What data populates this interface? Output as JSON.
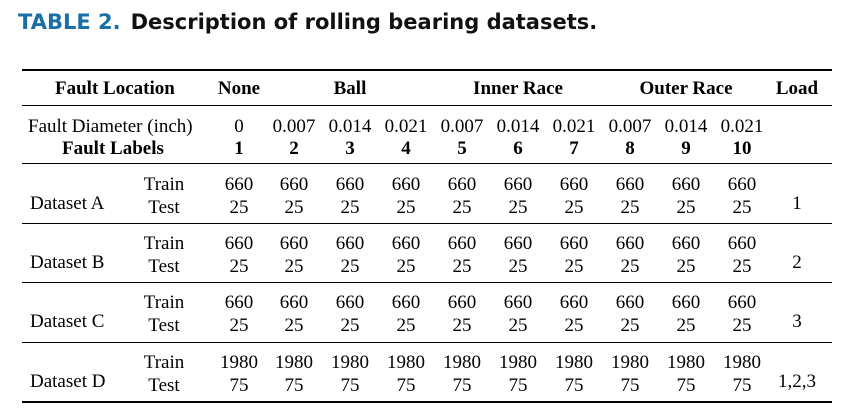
{
  "caption": {
    "label": "TABLE 2.",
    "title": "Description of rolling bearing datasets."
  },
  "header": {
    "fault_location": "Fault Location",
    "groups": [
      "None",
      "Ball",
      "Inner Race",
      "Outer Race"
    ],
    "load": "Load"
  },
  "diameter": {
    "label": "Fault Diameter (inch)",
    "values": [
      "0",
      "0.007",
      "0.014",
      "0.021",
      "0.007",
      "0.014",
      "0.021",
      "0.007",
      "0.014",
      "0.021"
    ]
  },
  "labels": {
    "label": "Fault Labels",
    "values": [
      "1",
      "2",
      "3",
      "4",
      "5",
      "6",
      "7",
      "8",
      "9",
      "10"
    ]
  },
  "datasets": [
    {
      "name": "Dataset A",
      "train_label": "Train",
      "test_label": "Test",
      "train": [
        "660",
        "660",
        "660",
        "660",
        "660",
        "660",
        "660",
        "660",
        "660",
        "660"
      ],
      "test": [
        "25",
        "25",
        "25",
        "25",
        "25",
        "25",
        "25",
        "25",
        "25",
        "25"
      ],
      "load": "1"
    },
    {
      "name": "Dataset B",
      "train_label": "Train",
      "test_label": "Test",
      "train": [
        "660",
        "660",
        "660",
        "660",
        "660",
        "660",
        "660",
        "660",
        "660",
        "660"
      ],
      "test": [
        "25",
        "25",
        "25",
        "25",
        "25",
        "25",
        "25",
        "25",
        "25",
        "25"
      ],
      "load": "2"
    },
    {
      "name": "Dataset C",
      "train_label": "Train",
      "test_label": "Test",
      "train": [
        "660",
        "660",
        "660",
        "660",
        "660",
        "660",
        "660",
        "660",
        "660",
        "660"
      ],
      "test": [
        "25",
        "25",
        "25",
        "25",
        "25",
        "25",
        "25",
        "25",
        "25",
        "25"
      ],
      "load": "3"
    },
    {
      "name": "Dataset D",
      "train_label": "Train",
      "test_label": "Test",
      "train": [
        "1980",
        "1980",
        "1980",
        "1980",
        "1980",
        "1980",
        "1980",
        "1980",
        "1980",
        "1980"
      ],
      "test": [
        "75",
        "75",
        "75",
        "75",
        "75",
        "75",
        "75",
        "75",
        "75",
        "75"
      ],
      "load": "1,2,3"
    }
  ]
}
